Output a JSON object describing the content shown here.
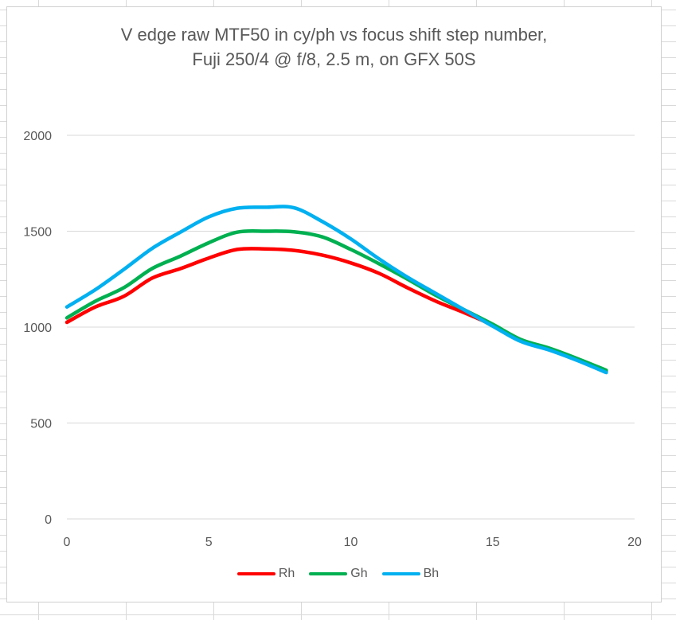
{
  "chart_data": {
    "type": "line",
    "title_lines": [
      "V edge raw MTF50 in cy/ph vs focus shift step number,",
      "Fuji 250/4 @ f/8, 2.5 m, on GFX 50S"
    ],
    "xlim": [
      0,
      20
    ],
    "ylim": [
      0,
      2000
    ],
    "x_ticks": [
      0,
      5,
      10,
      15,
      20
    ],
    "y_ticks": [
      0,
      500,
      1000,
      1500,
      2000
    ],
    "grid": "horizontal",
    "legend_position": "bottom",
    "x": [
      0,
      1,
      2,
      3,
      4,
      5,
      6,
      7,
      8,
      9,
      10,
      11,
      12,
      13,
      14,
      15,
      16,
      17,
      18,
      19
    ],
    "series": [
      {
        "name": "Rh",
        "color": "#ff0000",
        "values": [
          1025,
          1105,
          1160,
          1255,
          1305,
          1360,
          1405,
          1408,
          1400,
          1375,
          1335,
          1280,
          1205,
          1135,
          1075,
          1010,
          930,
          885,
          830,
          770
        ]
      },
      {
        "name": "Gh",
        "color": "#00b050",
        "values": [
          1048,
          1135,
          1205,
          1305,
          1370,
          1440,
          1495,
          1500,
          1497,
          1470,
          1405,
          1330,
          1250,
          1165,
          1090,
          1015,
          935,
          890,
          835,
          775
        ]
      },
      {
        "name": "Bh",
        "color": "#00b0f0",
        "values": [
          1105,
          1195,
          1300,
          1410,
          1495,
          1575,
          1620,
          1625,
          1622,
          1550,
          1460,
          1355,
          1260,
          1175,
          1090,
          1005,
          925,
          880,
          825,
          763
        ]
      }
    ]
  }
}
